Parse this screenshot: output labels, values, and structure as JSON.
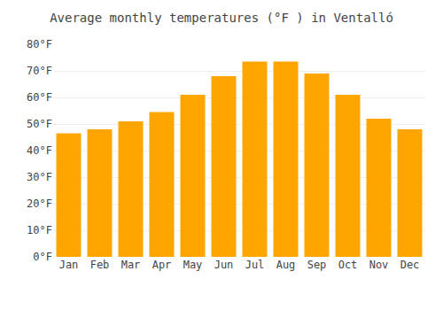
{
  "chart_data": {
    "type": "bar",
    "title": "Average monthly temperatures (°F ) in Ventalló",
    "categories": [
      "Jan",
      "Feb",
      "Mar",
      "Apr",
      "May",
      "Jun",
      "Jul",
      "Aug",
      "Sep",
      "Oct",
      "Nov",
      "Dec"
    ],
    "values": [
      46.5,
      48.0,
      51.0,
      54.5,
      61.0,
      68.0,
      73.5,
      73.5,
      69.0,
      61.0,
      52.0,
      48.0
    ],
    "color": "#FFA500",
    "ylim": [
      0,
      80
    ],
    "yticks": [
      {
        "value": 0,
        "label": "0°F"
      },
      {
        "value": 10,
        "label": "10°F"
      },
      {
        "value": 20,
        "label": "20°F"
      },
      {
        "value": 30,
        "label": "30°F"
      },
      {
        "value": 40,
        "label": "40°F"
      },
      {
        "value": 50,
        "label": "50°F"
      },
      {
        "value": 60,
        "label": "60°F"
      },
      {
        "value": 70,
        "label": "70°F"
      },
      {
        "value": 80,
        "label": "80°F"
      }
    ],
    "grid": true
  }
}
